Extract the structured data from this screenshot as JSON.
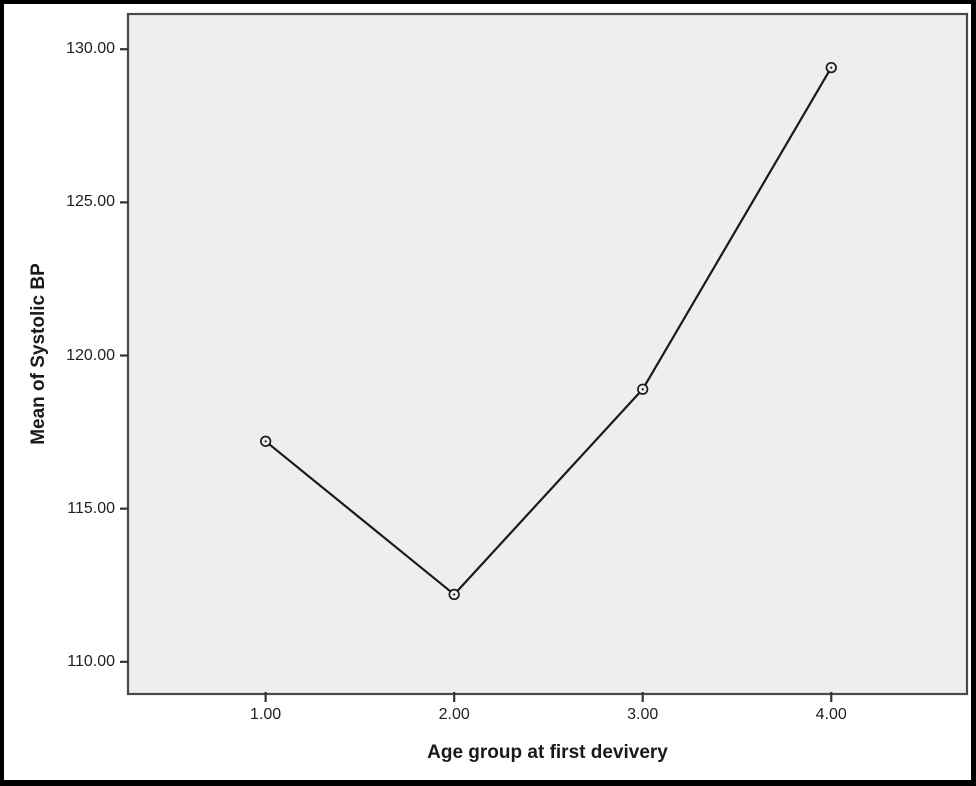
{
  "figure": {
    "background": "#ffffff",
    "frame_color": "#000000",
    "plot_background": "#eeeeee",
    "plot_border_color": "#4a4a4a",
    "line_color": "#1a1a1a",
    "marker_style": "open-circle",
    "marker_fill": "#eeeeee",
    "tick_color": "#333333",
    "text_color": "#1a1a1a"
  },
  "chart_data": {
    "type": "line",
    "title": "",
    "xlabel": "Age group at first devivery",
    "ylabel": "Mean of Systolic BP",
    "x": [
      1.0,
      2.0,
      3.0,
      4.0
    ],
    "values": [
      117.2,
      112.2,
      118.9,
      129.4
    ],
    "series": [
      {
        "name": "Mean of Systolic BP",
        "x": [
          1.0,
          2.0,
          3.0,
          4.0
        ],
        "values": [
          117.2,
          112.2,
          118.9,
          129.4
        ]
      }
    ],
    "xticks": {
      "values": [
        1.0,
        2.0,
        3.0,
        4.0
      ],
      "labels": [
        "1.00",
        "2.00",
        "3.00",
        "4.00"
      ]
    },
    "yticks": {
      "values": [
        110,
        115,
        120,
        125,
        130
      ],
      "labels": [
        "110.00",
        "115.00",
        "120.00",
        "125.00",
        "130.00"
      ]
    },
    "xlim": [
      0.27,
      4.72
    ],
    "ylim": [
      108.95,
      131.15
    ],
    "grid": false,
    "legend": null
  }
}
